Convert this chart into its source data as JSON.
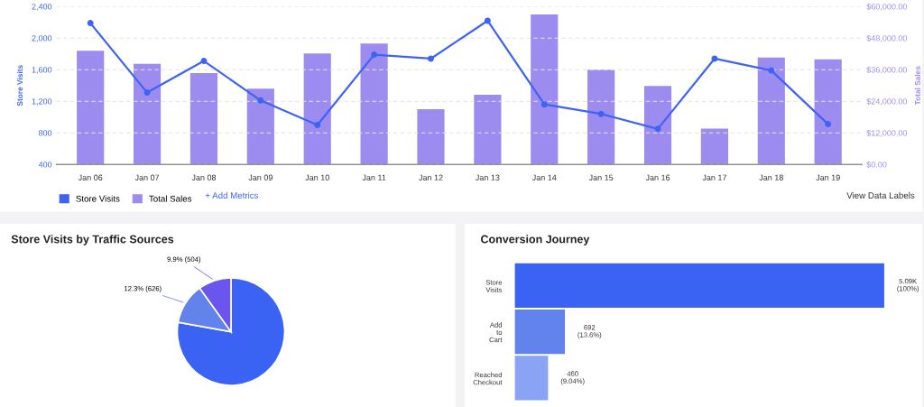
{
  "chart_data": [
    {
      "type": "bar",
      "categories": [
        "Jan 06",
        "Jan 07",
        "Jan 08",
        "Jan 09",
        "Jan 10",
        "Jan 11",
        "Jan 12",
        "Jan 13",
        "Jan 14",
        "Jan 15",
        "Jan 16",
        "Jan 17",
        "Jan 18",
        "Jan 19"
      ],
      "series": [
        {
          "name": "Store Visits",
          "type": "line",
          "color": "#3f63f2",
          "values": [
            2190,
            1310,
            1710,
            1210,
            900,
            1790,
            1740,
            2220,
            1160,
            1040,
            850,
            1740,
            1590,
            910
          ]
        },
        {
          "name": "Total Sales",
          "type": "bar",
          "axis": "y2",
          "color": "#9d8cef",
          "values": [
            43200,
            38200,
            34700,
            28800,
            42200,
            45900,
            21000,
            26500,
            57000,
            36000,
            29800,
            13600,
            40600,
            39900
          ]
        }
      ],
      "ylabel": "Store Visits",
      "y2label": "Total Sales",
      "ylim": [
        400,
        2400
      ],
      "yticks": [
        {
          "value": 400,
          "label": "400"
        },
        {
          "value": 800,
          "label": "800"
        },
        {
          "value": 1200,
          "label": "1,200"
        },
        {
          "value": 1600,
          "label": "1,600"
        },
        {
          "value": 2000,
          "label": "2,000"
        },
        {
          "value": 2400,
          "label": "2,400"
        }
      ],
      "y2lim": [
        0,
        60000
      ],
      "y2ticks": [
        {
          "value": 0,
          "label": "$0.00"
        },
        {
          "value": 12000,
          "label": "$12,000.00"
        },
        {
          "value": 24000,
          "label": "$24,000.00"
        },
        {
          "value": 36000,
          "label": "$36,000.00"
        },
        {
          "value": 48000,
          "label": "$48,000.00"
        },
        {
          "value": 60000,
          "label": "$60,000.00"
        }
      ],
      "grid": "y",
      "legend": "bottom left",
      "marker": "circle",
      "line_style": "solid",
      "annotations": [
        "+ Add Metrics",
        "View Data Labels"
      ]
    },
    {
      "type": "pie",
      "title": "Store Visits by Traffic Sources",
      "categories": [
        null,
        null,
        null
      ],
      "values": [
        77.8,
        12.3,
        9.9
      ],
      "colors": [
        "#3b63f3",
        "#6383ec",
        "#6a55ee"
      ],
      "value_labels": [
        null,
        "12.3% (626)",
        "9.9% (504)"
      ]
    },
    {
      "type": "bar",
      "orientation": "horizontal",
      "title": "Conversion Journey",
      "categories": [
        "Store Visits",
        "Add to Cart",
        "Reached Checkout"
      ],
      "values": [
        5090,
        692,
        460
      ],
      "colors": [
        "#3b63f3",
        "#6383ec",
        "#8aa3f5"
      ],
      "value_labels": [
        "5.09K (100%)",
        "692 (13.6%)",
        "460 (9.04%)"
      ],
      "tick_labels": "y"
    }
  ]
}
